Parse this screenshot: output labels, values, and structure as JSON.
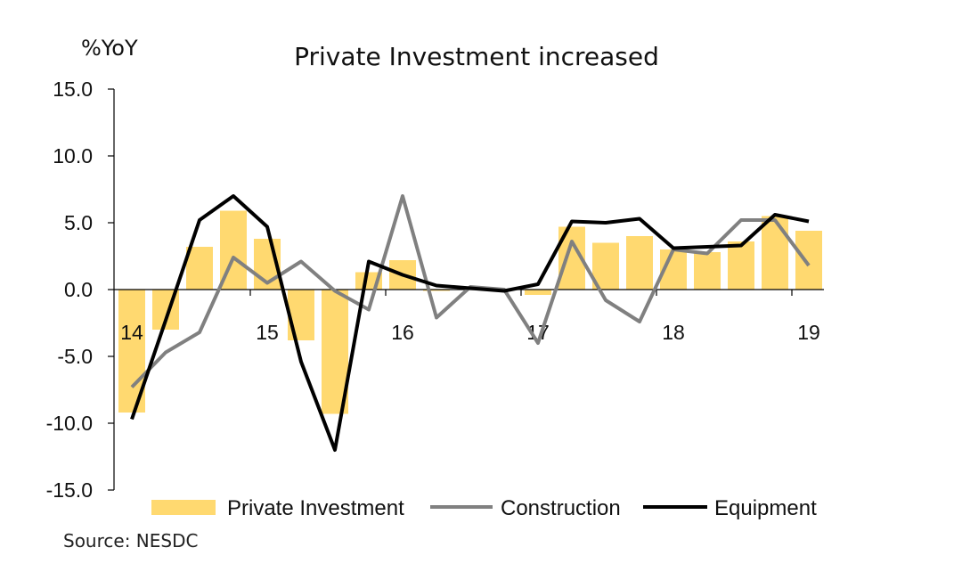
{
  "chart_data": {
    "type": "bar",
    "title": "Private Investment increased",
    "ylabel": "%YoY",
    "ylim": [
      -15,
      15
    ],
    "y_ticks": [
      "15.0",
      "10.0",
      "5.0",
      "0.0",
      "-5.0",
      "-10.0",
      "-15.0"
    ],
    "y_tick_values": [
      15,
      10,
      5,
      0,
      -5,
      -10,
      -15
    ],
    "x_tick_labels": [
      {
        "label": "14",
        "quarter_index": 0
      },
      {
        "label": "15",
        "quarter_index": 4
      },
      {
        "label": "16",
        "quarter_index": 8
      },
      {
        "label": "17",
        "quarter_index": 12
      },
      {
        "label": "18",
        "quarter_index": 16
      },
      {
        "label": "19",
        "quarter_index": 20
      }
    ],
    "categories": [
      "14Q1",
      "14Q2",
      "14Q3",
      "14Q4",
      "15Q1",
      "15Q2",
      "15Q3",
      "15Q4",
      "16Q1",
      "16Q2",
      "16Q3",
      "16Q4",
      "17Q1",
      "17Q2",
      "17Q3",
      "17Q4",
      "18Q1",
      "18Q2",
      "18Q3",
      "18Q4",
      "19Q1"
    ],
    "series": [
      {
        "name": "Private Investment",
        "kind": "bar",
        "color": "#FFD970",
        "values": [
          -9.2,
          -3.0,
          3.2,
          5.9,
          3.8,
          -3.8,
          -9.3,
          1.3,
          2.2,
          -0.1,
          0.1,
          0.0,
          -0.4,
          4.7,
          3.5,
          4.0,
          3.0,
          2.8,
          3.6,
          5.5,
          4.4
        ]
      },
      {
        "name": "Construction",
        "kind": "line",
        "color": "#808080",
        "values": [
          -7.3,
          -4.7,
          -3.2,
          2.4,
          0.5,
          2.1,
          -0.1,
          -1.5,
          7.0,
          -2.1,
          0.2,
          0.0,
          -4.0,
          3.6,
          -0.8,
          -2.4,
          3.0,
          2.7,
          5.2,
          5.2,
          1.8
        ]
      },
      {
        "name": "Equipment",
        "kind": "line",
        "color": "#000000",
        "values": [
          -9.7,
          -2.3,
          5.2,
          7.0,
          4.7,
          -5.4,
          -12.0,
          2.1,
          1.1,
          0.3,
          0.1,
          -0.1,
          0.4,
          5.1,
          5.0,
          5.3,
          3.1,
          3.2,
          3.3,
          5.6,
          5.1
        ]
      }
    ],
    "legend_position": "bottom"
  },
  "source_text": "Source: NESDC"
}
